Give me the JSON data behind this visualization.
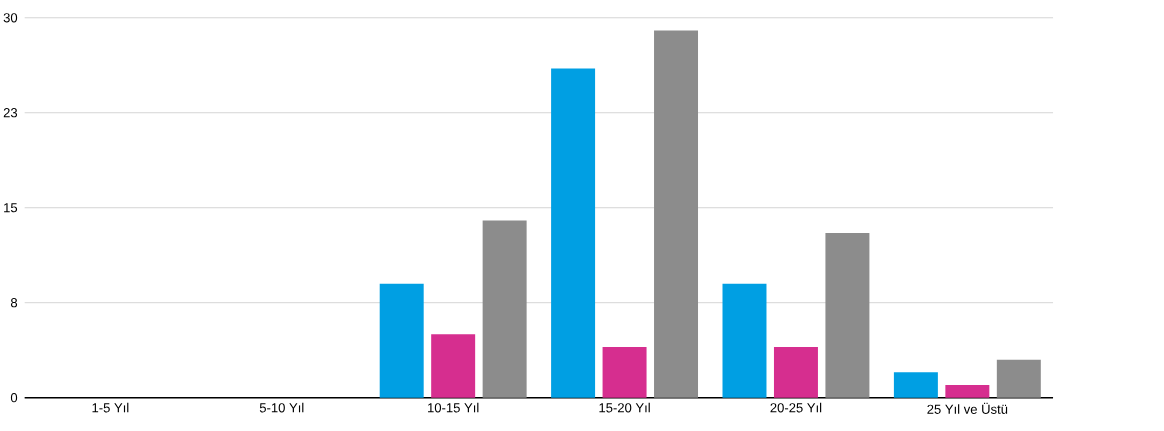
{
  "chart_data": {
    "type": "bar",
    "categories": [
      "1-5 Yıl",
      "5-10 Yıl",
      "10-15 Yıl",
      "15-20 Yıl",
      "20-25 Yıl",
      "25 Yıl ve Üstü"
    ],
    "series": [
      {
        "color": "#009fe3",
        "values": [
          0,
          0,
          9,
          26,
          9,
          2
        ]
      },
      {
        "color": "#d62e8f",
        "values": [
          0,
          0,
          5,
          4,
          4,
          1
        ]
      },
      {
        "color": "#8c8c8c",
        "values": [
          0,
          0,
          14,
          29,
          13,
          3
        ]
      }
    ],
    "ylim": [
      0,
      30
    ],
    "yticks": [
      0,
      {
        "value": 7.5,
        "label": "8"
      },
      15,
      {
        "value": 22.5,
        "label": "23"
      },
      30
    ],
    "grid": "y"
  }
}
